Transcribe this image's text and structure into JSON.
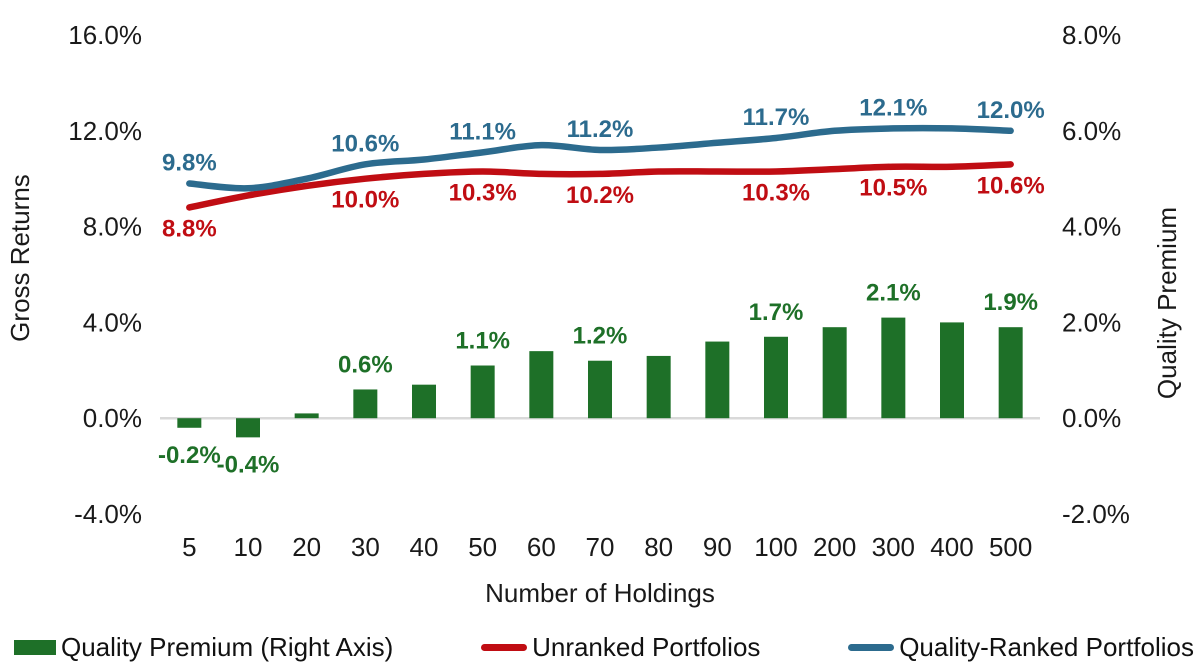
{
  "chart_data": {
    "type": "combo-bar-line",
    "title": "",
    "xlabel": "Number of Holdings",
    "y_left_label": "Gross Returns",
    "y_right_label": "Quality Premium",
    "categories": [
      "5",
      "10",
      "20",
      "30",
      "40",
      "50",
      "60",
      "70",
      "80",
      "90",
      "100",
      "200",
      "300",
      "400",
      "500"
    ],
    "left_axis": {
      "min": -4,
      "max": 16,
      "step": 4,
      "tick_values": [
        16,
        12,
        8,
        4,
        0,
        -4
      ],
      "tick_labels": [
        "16.0%",
        "12.0%",
        "8.0%",
        "4.0%",
        "0.0%",
        "-4.0%"
      ]
    },
    "right_axis": {
      "min": -2,
      "max": 8,
      "step": 2,
      "tick_values": [
        8,
        6,
        4,
        2,
        0,
        -2
      ],
      "tick_labels": [
        "8.0%",
        "6.0%",
        "4.0%",
        "2.0%",
        "0.0%",
        "-2.0%"
      ]
    },
    "grid": "zero-baseline-only",
    "baseline_color": "#d9d9d9",
    "tick_color": "#1a1a1a",
    "legend_position": "bottom",
    "series": [
      {
        "name": "Quality Premium (Right Axis)",
        "type": "bar",
        "axis": "right",
        "color": "#1e7028",
        "values": [
          -0.2,
          -0.4,
          0.1,
          0.6,
          0.7,
          1.1,
          1.4,
          1.2,
          1.3,
          1.6,
          1.7,
          1.9,
          2.1,
          2.0,
          1.9
        ],
        "labels": {
          "0": "-0.2%",
          "1": "-0.4%",
          "3": "0.6%",
          "5": "1.1%",
          "7": "1.2%",
          "10": "1.7%",
          "12": "2.1%",
          "14": "1.9%"
        }
      },
      {
        "name": "Unranked Portfolios",
        "type": "line",
        "axis": "left",
        "color": "#c00d13",
        "label_side": "below",
        "values": [
          8.8,
          9.3,
          9.7,
          10.0,
          10.2,
          10.3,
          10.2,
          10.2,
          10.3,
          10.3,
          10.3,
          10.4,
          10.5,
          10.5,
          10.6
        ],
        "labels": {
          "0": "8.8%",
          "3": "10.0%",
          "5": "10.3%",
          "7": "10.2%",
          "10": "10.3%",
          "12": "10.5%",
          "14": "10.6%"
        }
      },
      {
        "name": "Quality-Ranked Portfolios",
        "type": "line",
        "axis": "left",
        "color": "#2c6b8e",
        "label_side": "above",
        "values": [
          9.8,
          9.6,
          10.0,
          10.6,
          10.8,
          11.1,
          11.4,
          11.2,
          11.3,
          11.5,
          11.7,
          12.0,
          12.1,
          12.1,
          12.0
        ],
        "labels": {
          "0": "9.8%",
          "3": "10.6%",
          "5": "11.1%",
          "7": "11.2%",
          "10": "11.7%",
          "12": "12.1%",
          "14": "12.0%"
        }
      }
    ]
  }
}
